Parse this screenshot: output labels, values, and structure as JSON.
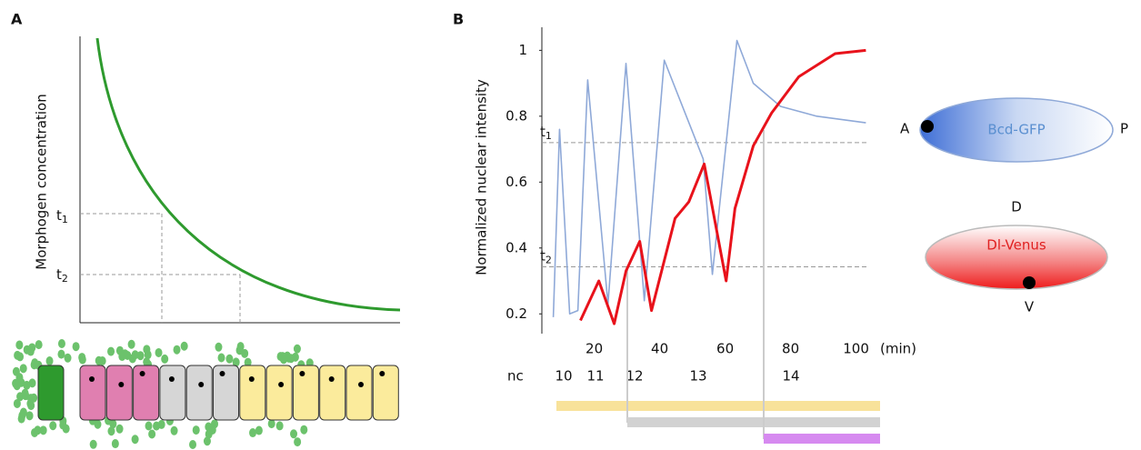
{
  "panel_a": {
    "label": "A",
    "y_label": "Morphogen concentration",
    "thresholds": [
      {
        "letter": "t",
        "index": "1"
      },
      {
        "letter": "t",
        "index": "2"
      }
    ]
  },
  "chart_data": {
    "type": "line",
    "label": "B",
    "y_label": "Normalized nuclear intensity",
    "x_unit": "(min)",
    "xlim": [
      4,
      104
    ],
    "xticks": [
      20,
      40,
      60,
      80,
      100
    ],
    "ylim": [
      0.14,
      1.07
    ],
    "yticks": [
      0.2,
      0.4,
      0.6,
      0.8,
      1
    ],
    "series": [
      {
        "color": "#8fa9d8",
        "x": [
          7.5,
          9.4,
          12.5,
          15,
          18,
          24.2,
          29.7,
          35.3,
          41.4,
          53.3,
          56.1,
          63.6,
          68.6,
          76.9,
          88,
          103
        ],
        "values": [
          0.19,
          0.76,
          0.2,
          0.21,
          0.91,
          0.23,
          0.96,
          0.24,
          0.97,
          0.67,
          0.32,
          1.03,
          0.9,
          0.83,
          0.8,
          0.78
        ]
      },
      {
        "color": "#e8121b",
        "x": [
          15.8,
          21.4,
          26.1,
          29.7,
          33.9,
          37.5,
          44.7,
          48.9,
          53.6,
          60.3,
          63,
          68.6,
          74.2,
          82.5,
          93.6,
          103
        ],
        "values": [
          0.18,
          0.3,
          0.17,
          0.33,
          0.42,
          0.21,
          0.49,
          0.54,
          0.655,
          0.3,
          0.52,
          0.71,
          0.81,
          0.92,
          0.99,
          1.0
        ]
      }
    ],
    "thresholds": [
      {
        "letter": "t",
        "index": "1",
        "value": 0.72
      },
      {
        "letter": "t",
        "index": "2",
        "value": 0.343
      }
    ],
    "nc": {
      "label": "nc",
      "stages": [
        "10",
        "11",
        "12",
        "13",
        "14"
      ]
    }
  },
  "embryos": [
    {
      "name": "Bcd-GFP",
      "poles": [
        "A",
        "P"
      ]
    },
    {
      "name": "Dl-Venus",
      "poles": [
        "D",
        "V"
      ]
    }
  ]
}
